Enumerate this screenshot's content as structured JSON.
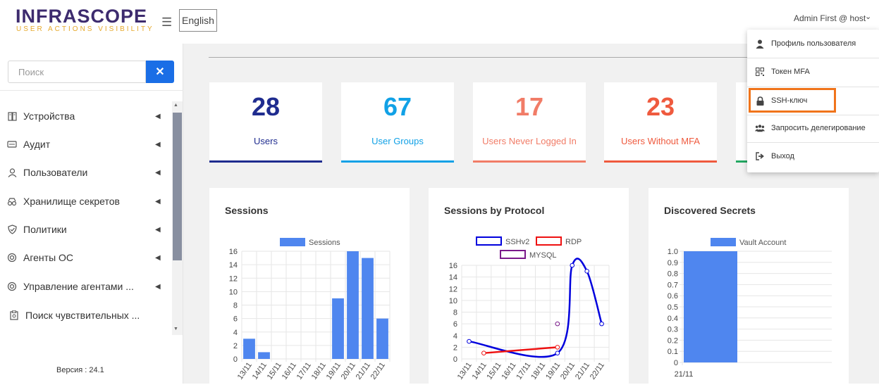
{
  "header": {
    "logo_title": "INFRASCOPE",
    "logo_subtitle": "USER ACTIONS VISIBILITY",
    "menu_icon": "☰",
    "language": "English",
    "user_label": "Admin First @ host",
    "user_chevron": "⌄"
  },
  "sidebar": {
    "search_placeholder": "Поиск",
    "search_clear": "✕",
    "items": [
      {
        "label": "Устройства",
        "icon": "server-icon"
      },
      {
        "label": "Аудит",
        "icon": "audit-icon"
      },
      {
        "label": "Пользователи",
        "icon": "user-icon"
      },
      {
        "label": "Хранилище секретов",
        "icon": "vault-icon"
      },
      {
        "label": "Политики",
        "icon": "shield-icon"
      },
      {
        "label": "Агенты ОС",
        "icon": "agent-icon"
      },
      {
        "label": "Управление агентами ...",
        "icon": "agent-manage-icon"
      },
      {
        "label": "Поиск чувствительных ...",
        "icon": "search-sensitive-icon"
      }
    ],
    "version": "Версия : 24.1"
  },
  "stats": [
    {
      "value": "28",
      "label": "Users",
      "color": "#1f2c8f"
    },
    {
      "value": "67",
      "label": "User Groups",
      "color": "#11a1e6"
    },
    {
      "value": "17",
      "label": "Users Never Logged In",
      "color": "#f17c67"
    },
    {
      "value": "23",
      "label": "Users Without MFA",
      "color": "#ef5a3e"
    }
  ],
  "charts": {
    "sessions_title": "Sessions",
    "protocol_title": "Sessions by Protocol",
    "secrets_title": "Discovered Secrets"
  },
  "chart_data": [
    {
      "type": "bar",
      "title": "Sessions",
      "categories": [
        "13/11",
        "14/11",
        "15/11",
        "16/11",
        "17/11",
        "18/11",
        "19/11",
        "20/11",
        "21/11",
        "22/11"
      ],
      "series": [
        {
          "name": "Sessions",
          "values": [
            3,
            1,
            0,
            0,
            0,
            0,
            9,
            16,
            15,
            6
          ],
          "color": "#4f86ef"
        }
      ],
      "y_ticks": [
        "0",
        "2",
        "4",
        "6",
        "8",
        "10",
        "12",
        "14",
        "16"
      ],
      "ylim": [
        0,
        16
      ],
      "grid": true,
      "legend": "top"
    },
    {
      "type": "line",
      "title": "Sessions by Protocol",
      "categories": [
        "13/11",
        "14/11",
        "15/11",
        "16/11",
        "17/11",
        "18/11",
        "19/11",
        "20/11",
        "21/11",
        "22/11"
      ],
      "series": [
        {
          "name": "SSHv2",
          "color": "#0000dd",
          "points": [
            [
              0,
              3
            ],
            [
              6,
              1
            ],
            [
              7,
              16
            ],
            [
              8,
              15
            ],
            [
              9,
              6
            ]
          ]
        },
        {
          "name": "RDP",
          "color": "#ee1111",
          "points": [
            [
              1,
              1
            ],
            [
              6,
              2
            ]
          ]
        },
        {
          "name": "MYSQL",
          "color": "#7a1a8a",
          "points": [
            [
              6,
              6
            ]
          ]
        }
      ],
      "y_ticks": [
        "0",
        "2",
        "4",
        "6",
        "8",
        "10",
        "12",
        "14",
        "16"
      ],
      "ylim": [
        0,
        16
      ],
      "grid": true,
      "legend": "top"
    },
    {
      "type": "bar",
      "title": "Discovered Secrets",
      "categories": [
        "21/11"
      ],
      "series": [
        {
          "name": "Vault Account",
          "values": [
            1
          ],
          "color": "#4f86ef"
        }
      ],
      "y_ticks": [
        "0",
        "0.1",
        "0.2",
        "0.3",
        "0.4",
        "0.5",
        "0.6",
        "0.7",
        "0.8",
        "0.9",
        "1.0"
      ],
      "ylim": [
        0,
        1
      ],
      "grid": true,
      "legend": "top"
    }
  ],
  "user_menu": {
    "items": [
      {
        "label": "Профиль пользователя",
        "icon": "user-profile-icon"
      },
      {
        "label": "Токен MFA",
        "icon": "qr-code-icon"
      },
      {
        "label": "SSH-ключ",
        "icon": "lock-icon"
      },
      {
        "label": "Запросить делегирование",
        "icon": "users-group-icon"
      },
      {
        "label": "Выход",
        "icon": "logout-icon"
      }
    ],
    "highlight_color": "#f0741b"
  }
}
